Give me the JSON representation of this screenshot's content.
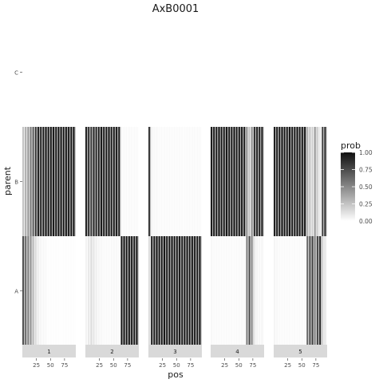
{
  "chart_data": {
    "type": "heatmap",
    "title": "AxB0001",
    "xlabel": "pos",
    "ylabel": "parent",
    "y_categories": [
      "A",
      "B",
      "C"
    ],
    "x_ticks": [
      25,
      50,
      75
    ],
    "x_tick_labels": [
      "25",
      "50",
      "75"
    ],
    "xlim": [
      0,
      95
    ],
    "facets": [
      "1",
      "2",
      "3",
      "4",
      "5"
    ],
    "legend": {
      "title": "prob",
      "position": "right",
      "ticks": [
        1.0,
        0.75,
        0.5,
        0.25,
        0.0
      ],
      "tick_labels": [
        "1.00",
        "0.75",
        "0.50",
        "0.25",
        "0.00"
      ]
    },
    "colors": {
      "low": "#ffffff",
      "high": "#101010",
      "strip": "#d9d9d9"
    },
    "cell_width": 4.5,
    "panels": [
      {
        "facet": "1",
        "x": [
          2.25,
          6.75,
          11.25,
          15.75,
          20.25,
          24.75,
          29.25,
          33.75,
          38.25,
          42.75,
          47.25,
          51.75,
          56.25,
          60.75,
          65.25,
          69.75,
          74.25,
          78.75,
          83.25,
          87.75,
          92.25
        ],
        "B": [
          0.25,
          0.35,
          0.45,
          0.55,
          0.7,
          0.85,
          0.93,
          0.96,
          0.97,
          0.98,
          0.99,
          0.99,
          0.99,
          0.99,
          0.99,
          0.99,
          0.99,
          0.99,
          0.99,
          0.99,
          0.99
        ],
        "A": [
          0.75,
          0.65,
          0.55,
          0.45,
          0.3,
          0.15,
          0.07,
          0.04,
          0.03,
          0.02,
          0.01,
          0.01,
          0.01,
          0.01,
          0.01,
          0.01,
          0.01,
          0.01,
          0.01,
          0.01,
          0.01
        ]
      },
      {
        "facet": "2",
        "x": [
          2.25,
          6.75,
          11.25,
          15.75,
          20.25,
          24.75,
          29.25,
          33.75,
          38.25,
          42.75,
          47.25,
          51.75,
          56.25,
          60.75,
          65.25,
          69.75,
          74.25,
          78.75,
          83.25,
          87.75,
          92.25
        ],
        "B": [
          0.95,
          0.9,
          0.85,
          0.9,
          0.93,
          0.96,
          0.97,
          0.98,
          0.98,
          0.98,
          0.97,
          0.97,
          0.97,
          0.97,
          0.02,
          0.02,
          0.02,
          0.02,
          0.02,
          0.02,
          0.02
        ],
        "A": [
          0.05,
          0.1,
          0.15,
          0.1,
          0.07,
          0.04,
          0.03,
          0.02,
          0.02,
          0.02,
          0.03,
          0.03,
          0.03,
          0.03,
          0.98,
          0.98,
          0.98,
          0.98,
          0.98,
          0.98,
          0.98
        ]
      },
      {
        "facet": "3",
        "x": [
          2.25,
          6.75,
          11.25,
          15.75,
          20.25,
          24.75,
          29.25,
          33.75,
          38.25,
          42.75,
          47.25,
          51.75,
          56.25,
          60.75,
          65.25,
          69.75,
          74.25,
          78.75,
          83.25,
          87.75,
          92.25
        ],
        "B": [
          0.85,
          0.05,
          0.03,
          0.03,
          0.02,
          0.02,
          0.02,
          0.02,
          0.02,
          0.02,
          0.02,
          0.02,
          0.02,
          0.02,
          0.02,
          0.02,
          0.02,
          0.02,
          0.02,
          0.02,
          0.02
        ],
        "A": [
          0.15,
          0.95,
          0.97,
          0.97,
          0.98,
          0.98,
          0.98,
          0.98,
          0.98,
          0.98,
          0.98,
          0.98,
          0.98,
          0.98,
          0.98,
          0.98,
          0.98,
          0.98,
          0.98,
          0.98,
          0.98
        ]
      },
      {
        "facet": "4",
        "x": [
          2.25,
          6.75,
          11.25,
          15.75,
          20.25,
          24.75,
          29.25,
          33.75,
          38.25,
          42.75,
          47.25,
          51.75,
          56.25,
          60.75,
          65.25,
          69.75,
          74.25,
          78.75,
          83.25,
          87.75,
          92.25
        ],
        "B": [
          0.97,
          0.98,
          0.98,
          0.98,
          0.98,
          0.98,
          0.98,
          0.98,
          0.98,
          0.98,
          0.98,
          0.98,
          0.98,
          0.98,
          0.45,
          0.25,
          0.5,
          0.9,
          0.95,
          0.96,
          0.96
        ],
        "A": [
          0.03,
          0.02,
          0.02,
          0.02,
          0.02,
          0.02,
          0.02,
          0.02,
          0.02,
          0.02,
          0.02,
          0.02,
          0.02,
          0.02,
          0.55,
          0.75,
          0.5,
          0.1,
          0.05,
          0.04,
          0.04
        ]
      },
      {
        "facet": "5",
        "x": [
          2.25,
          6.75,
          11.25,
          15.75,
          20.25,
          24.75,
          29.25,
          33.75,
          38.25,
          42.75,
          47.25,
          51.75,
          56.25,
          60.75,
          65.25,
          69.75,
          74.25,
          78.75,
          83.25,
          87.75,
          92.25
        ],
        "B": [
          0.96,
          0.97,
          0.98,
          0.98,
          0.98,
          0.98,
          0.98,
          0.98,
          0.98,
          0.98,
          0.98,
          0.98,
          0.98,
          0.35,
          0.25,
          0.2,
          0.45,
          0.2,
          0.1,
          0.8,
          0.9
        ],
        "A": [
          0.04,
          0.03,
          0.02,
          0.02,
          0.02,
          0.02,
          0.02,
          0.02,
          0.02,
          0.02,
          0.02,
          0.02,
          0.02,
          0.65,
          0.75,
          0.8,
          0.55,
          0.8,
          0.9,
          0.2,
          0.1
        ]
      }
    ]
  }
}
